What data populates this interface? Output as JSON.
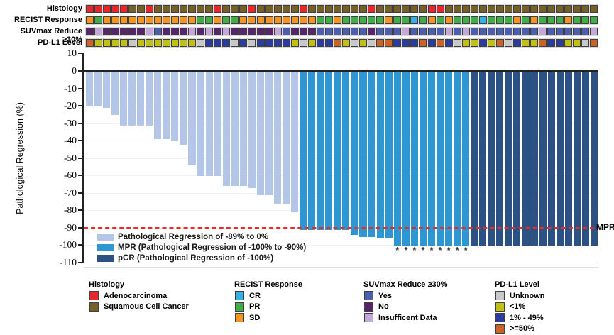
{
  "chart_data": {
    "type": "bar",
    "subtype": "waterfall",
    "title": "",
    "ylabel": "Pathological Regression (%)",
    "ylim": [
      10,
      -110
    ],
    "yticks": [
      10,
      0,
      -10,
      -20,
      -30,
      -40,
      -50,
      -60,
      -70,
      -80,
      -90,
      -100,
      -110
    ],
    "n_bars": 60,
    "grid": "horizontal every 10%",
    "values": [
      -20,
      -20,
      -21,
      -25,
      -31,
      -31,
      -31,
      -31,
      -39,
      -39,
      -40,
      -42,
      -54,
      -60,
      -60,
      -60,
      -66,
      -66,
      -66,
      -67,
      -71,
      -71,
      -76,
      -76,
      -81,
      -91,
      -91,
      -91,
      -91,
      -91,
      -91,
      -94,
      -95,
      -95,
      -96,
      -96,
      -100,
      -100,
      -100,
      -100,
      -100,
      -100,
      -100,
      -100,
      -100,
      -100,
      -100,
      -100,
      -100,
      -100,
      -100,
      -100,
      -100,
      -100,
      -100,
      -100,
      -100,
      -100,
      -100,
      -100
    ],
    "groups": [
      "light",
      "light",
      "light",
      "light",
      "light",
      "light",
      "light",
      "light",
      "light",
      "light",
      "light",
      "light",
      "light",
      "light",
      "light",
      "light",
      "light",
      "light",
      "light",
      "light",
      "light",
      "light",
      "light",
      "light",
      "light",
      "mpr",
      "mpr",
      "mpr",
      "mpr",
      "mpr",
      "mpr",
      "mpr",
      "mpr",
      "mpr",
      "mpr",
      "mpr",
      "mpr",
      "mpr",
      "mpr",
      "mpr",
      "mpr",
      "mpr",
      "mpr",
      "mpr",
      "mpr",
      "pcr",
      "pcr",
      "pcr",
      "pcr",
      "pcr",
      "pcr",
      "pcr",
      "pcr",
      "pcr",
      "pcr",
      "pcr",
      "pcr",
      "pcr",
      "pcr",
      "pcr"
    ],
    "asterisk_bars": [
      37,
      38,
      39,
      40,
      41,
      42,
      43,
      44,
      45
    ],
    "group_colors": {
      "light": "#b4c6e7",
      "mpr": "#2e96d2",
      "pcr": "#2b5283"
    },
    "reference_line": {
      "y": -90,
      "label": "MPR",
      "color": "#ed2a24",
      "style": "dashed"
    },
    "legend_position": "inside bottom-left",
    "legend": [
      {
        "key": "light",
        "label": "Pathological Regression of -89% to 0%"
      },
      {
        "key": "mpr",
        "label": "MPR (Pathological Regression of -100% to -90%)"
      },
      {
        "key": "pcr",
        "label": "pCR (Pathological Regression of -100%)"
      }
    ]
  },
  "tracks": {
    "rows": [
      {
        "key": "histology",
        "label": "Histology",
        "values": [
          "A",
          "A",
          "A",
          "A",
          "A",
          "S",
          "S",
          "A",
          "S",
          "S",
          "S",
          "S",
          "S",
          "S",
          "S",
          "A",
          "S",
          "S",
          "S",
          "A",
          "S",
          "S",
          "S",
          "S",
          "S",
          "A",
          "S",
          "S",
          "S",
          "S",
          "S",
          "S",
          "S",
          "A",
          "S",
          "S",
          "S",
          "S",
          "S",
          "S",
          "A",
          "A",
          "S",
          "S",
          "S",
          "S",
          "S",
          "S",
          "S",
          "S",
          "S",
          "S",
          "S",
          "S",
          "S",
          "S",
          "S",
          "S",
          "S",
          "S"
        ]
      },
      {
        "key": "recist",
        "label": "RECIST Response",
        "values": [
          "SD",
          "PR",
          "SD",
          "SD",
          "SD",
          "SD",
          "SD",
          "SD",
          "SD",
          "SD",
          "SD",
          "SD",
          "SD",
          "PR",
          "PR",
          "SD",
          "PR",
          "PR",
          "SD",
          "SD",
          "SD",
          "SD",
          "SD",
          "SD",
          "SD",
          "SD",
          "SD",
          "PR",
          "PR",
          "SD",
          "PR",
          "PR",
          "PR",
          "PR",
          "PR",
          "SD",
          "PR",
          "PR",
          "CR",
          "PR",
          "SD",
          "PR",
          "SD",
          "PR",
          "PR",
          "PR",
          "CR",
          "PR",
          "PR",
          "PR",
          "SD",
          "PR",
          "SD",
          "PR",
          "PR",
          "PR",
          "SD",
          "PR",
          "PR",
          "PR"
        ]
      },
      {
        "key": "suvmax",
        "label": "SUVmax Reduce ≥30%",
        "values": [
          "N",
          "I",
          "N",
          "N",
          "N",
          "N",
          "N",
          "I",
          "Y",
          "N",
          "N",
          "N",
          "I",
          "N",
          "I",
          "N",
          "I",
          "N",
          "N",
          "N",
          "N",
          "N",
          "I",
          "Y",
          "N",
          "N",
          "N",
          "Y",
          "Y",
          "Y",
          "Y",
          "Y",
          "Y",
          "N",
          "Y",
          "Y",
          "Y",
          "I",
          "Y",
          "Y",
          "Y",
          "Y",
          "I",
          "Y",
          "I",
          "Y",
          "Y",
          "Y",
          "Y",
          "Y",
          "Y",
          "Y",
          "Y",
          "I",
          "Y",
          "Y",
          "Y",
          "Y",
          "Y",
          "I"
        ]
      },
      {
        "key": "pdl1",
        "label": "PD-L1 Level",
        "values": [
          "H",
          "L",
          "L",
          "L",
          "L",
          "U",
          "L",
          "L",
          "L",
          "L",
          "L",
          "L",
          "L",
          "U",
          "M",
          "M",
          "M",
          "U",
          "M",
          "U",
          "M",
          "M",
          "M",
          "M",
          "L",
          "U",
          "L",
          "M",
          "M",
          "H",
          "L",
          "U",
          "L",
          "U",
          "H",
          "H",
          "M",
          "M",
          "M",
          "H",
          "M",
          "H",
          "M",
          "U",
          "L",
          "L",
          "M",
          "L",
          "H",
          "U",
          "M",
          "L",
          "L",
          "H",
          "M",
          "M",
          "L",
          "L",
          "U",
          "H"
        ]
      }
    ],
    "palette": {
      "histology": {
        "A": "#e8262b",
        "S": "#756029"
      },
      "recist": {
        "CR": "#35b2e5",
        "PR": "#3fae49",
        "SD": "#f69421"
      },
      "suvmax": {
        "Y": "#4c5fac",
        "N": "#56256a",
        "I": "#c4a7db"
      },
      "pdl1": {
        "U": "#c8c8ca",
        "L": "#c1c016",
        "M": "#2b3b9e",
        "H": "#cb6327"
      }
    }
  },
  "bottom_legend": [
    {
      "title": "Histology",
      "items": [
        {
          "label": "Adenocarcinoma",
          "color": "#e8262b"
        },
        {
          "label": "Squamous Cell Cancer",
          "color": "#756029"
        }
      ]
    },
    {
      "title": "RECIST Response",
      "items": [
        {
          "label": "CR",
          "color": "#35b2e5"
        },
        {
          "label": "PR",
          "color": "#3fae49"
        },
        {
          "label": "SD",
          "color": "#f69421"
        }
      ]
    },
    {
      "title": "SUVmax Reduce ≥30%",
      "items": [
        {
          "label": "Yes",
          "color": "#4c5fac"
        },
        {
          "label": "No",
          "color": "#56256a"
        },
        {
          "label": "Insufficent Data",
          "color": "#c4a7db"
        }
      ]
    },
    {
      "title": "PD-L1 Level",
      "items": [
        {
          "label": "Unknown",
          "color": "#c8c8ca"
        },
        {
          "label": "<1%",
          "color": "#c1c016"
        },
        {
          "label": "1% - 49%",
          "color": "#2b3b9e"
        },
        {
          "label": ">=50%",
          "color": "#cb6327"
        }
      ]
    }
  ],
  "mpr_annotation": "MPR"
}
